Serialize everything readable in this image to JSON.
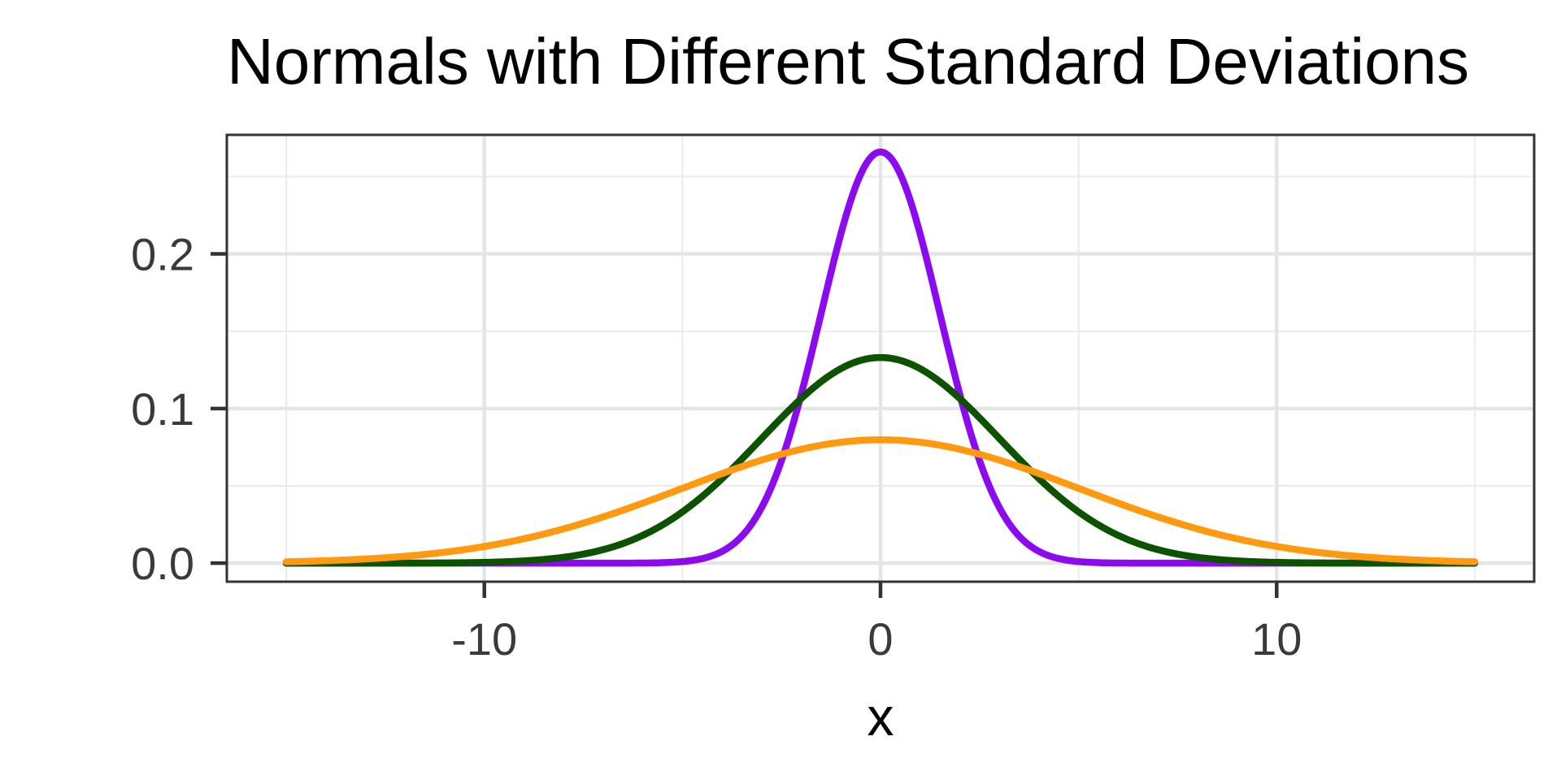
{
  "chart_data": {
    "type": "line",
    "title": "Normals with Different Standard Deviations",
    "xlabel": "x",
    "ylabel": "",
    "xlim": [
      -16.5,
      16.5
    ],
    "ylim": [
      -0.012,
      0.277
    ],
    "x_ticks": [
      -10,
      0,
      10
    ],
    "x_tick_labels": [
      "-10",
      "0",
      "10"
    ],
    "y_ticks": [
      0.0,
      0.1,
      0.2
    ],
    "y_tick_labels": [
      "0.0",
      "0.1",
      "0.2"
    ],
    "grid": true,
    "legend": "none",
    "x_range": [
      -15,
      15
    ],
    "series": [
      {
        "distribution": "normal",
        "mean": 0,
        "sd": 1.5,
        "color": "#8B0BEE"
      },
      {
        "distribution": "normal",
        "mean": 0,
        "sd": 3,
        "color": "#0D5200"
      },
      {
        "distribution": "normal",
        "mean": 0,
        "sd": 5,
        "color": "#FF9A10"
      }
    ]
  }
}
